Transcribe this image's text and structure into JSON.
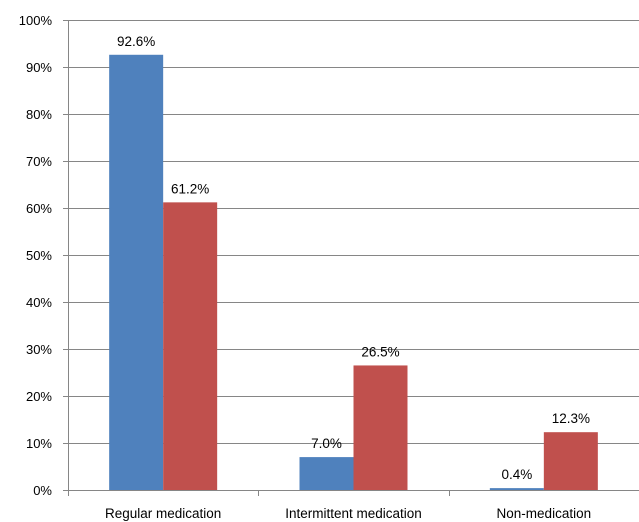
{
  "chart_data": {
    "type": "bar",
    "categories": [
      "Regular medication",
      "Intermittent medication",
      "Non-medication"
    ],
    "series": [
      {
        "values": [
          92.6,
          7.0,
          0.4
        ],
        "labels": [
          "92.6%",
          "7.0%",
          "0.4%"
        ],
        "color": "#4F81BD"
      },
      {
        "values": [
          61.2,
          26.5,
          12.3
        ],
        "labels": [
          "61.2%",
          "26.5%",
          "12.3%"
        ],
        "color": "#C0504D"
      }
    ],
    "yticks": [
      "0%",
      "10%",
      "20%",
      "30%",
      "40%",
      "50%",
      "60%",
      "70%",
      "80%",
      "90%",
      "100%"
    ],
    "ylim": [
      0,
      100
    ],
    "grid": true,
    "gridline_color": "#868686",
    "title": "",
    "xlabel": "",
    "ylabel": ""
  }
}
